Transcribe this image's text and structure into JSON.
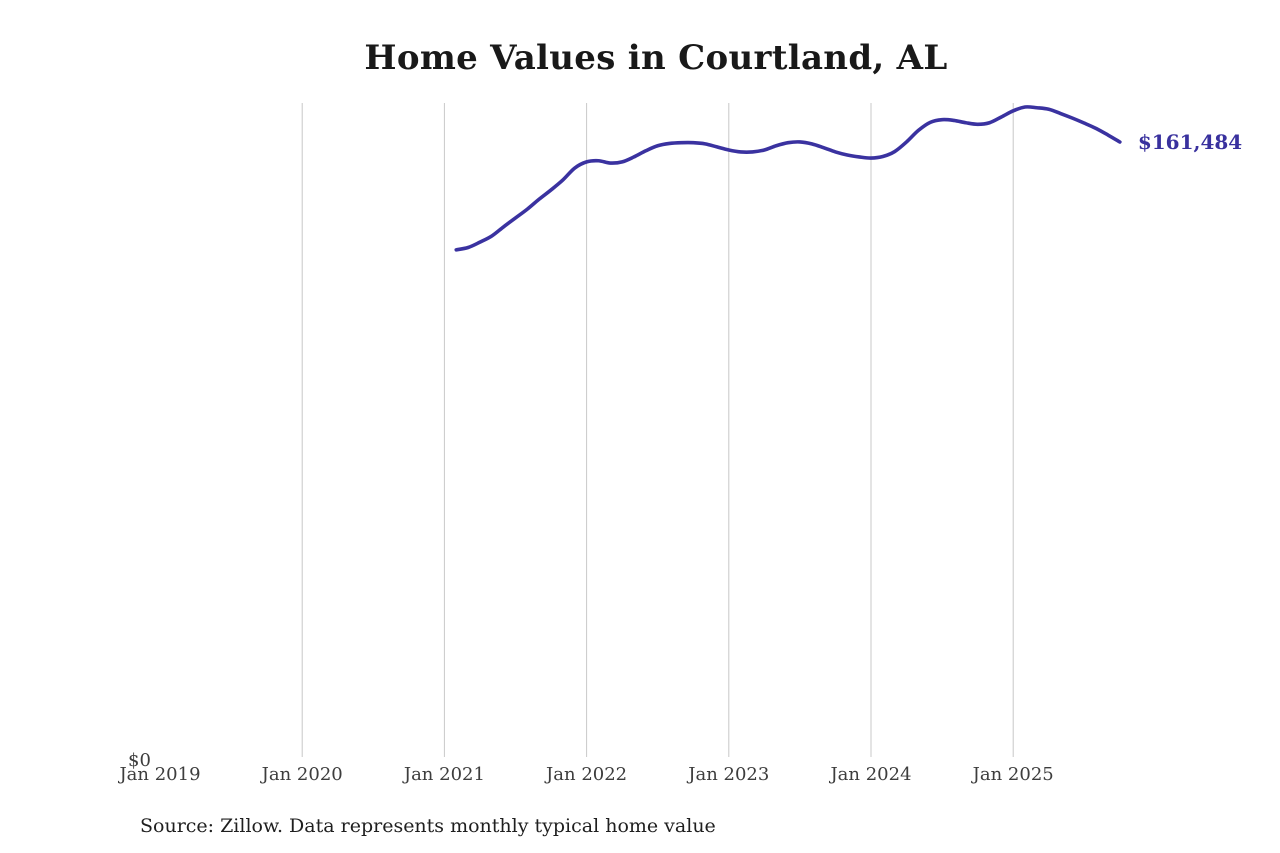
{
  "title": "Home Values in Courtland, AL",
  "y_axis_zero_label": "$0",
  "end_value_label": "$161,484",
  "source_note": "Source: Zillow. Data represents monthly typical home value",
  "colors": {
    "line": "#3a32a0",
    "end_label": "#39319e",
    "gridline": "#c8c8c8",
    "title_text": "#191919",
    "axis_text": "#3d3d3d"
  },
  "chart_data": {
    "type": "line",
    "title": "Home Values in Courtland, AL",
    "xlabel": "",
    "ylabel": "",
    "ylim": [
      0,
      185000
    ],
    "grid": "vertical gridlines at each January (Jan 2020 through Jan 2025), no gridline at Jan 2019",
    "legend": "none",
    "x_ticks": [
      "Jan 2019",
      "Jan 2020",
      "Jan 2021",
      "Jan 2022",
      "Jan 2023",
      "Jan 2024",
      "Jan 2025"
    ],
    "end_annotation": {
      "text": "$161,484",
      "x": "2025-10",
      "value": 161484
    },
    "series": [
      {
        "name": "Monthly typical home value",
        "color": "#3a32a0",
        "x": [
          "2021-02",
          "2021-03",
          "2021-04",
          "2021-05",
          "2021-06",
          "2021-07",
          "2021-08",
          "2021-09",
          "2021-10",
          "2021-11",
          "2021-12",
          "2022-01",
          "2022-02",
          "2022-03",
          "2022-04",
          "2022-05",
          "2022-06",
          "2022-07",
          "2022-08",
          "2022-09",
          "2022-10",
          "2022-11",
          "2022-12",
          "2023-01",
          "2023-02",
          "2023-03",
          "2023-04",
          "2023-05",
          "2023-06",
          "2023-07",
          "2023-08",
          "2023-09",
          "2023-10",
          "2023-11",
          "2023-12",
          "2024-01",
          "2024-02",
          "2024-03",
          "2024-04",
          "2024-05",
          "2024-06",
          "2024-07",
          "2024-08",
          "2024-09",
          "2024-10",
          "2024-11",
          "2024-12",
          "2025-01",
          "2025-02",
          "2025-03",
          "2025-04",
          "2025-05",
          "2025-06",
          "2025-07",
          "2025-08",
          "2025-09",
          "2025-10"
        ],
        "values": [
          133400,
          134000,
          135400,
          137000,
          139400,
          141700,
          144000,
          146600,
          149000,
          151600,
          154700,
          156300,
          156600,
          156000,
          156300,
          157600,
          159200,
          160500,
          161100,
          161300,
          161300,
          161000,
          160200,
          159400,
          158900,
          158900,
          159400,
          160500,
          161300,
          161500,
          161000,
          160000,
          158900,
          158100,
          157600,
          157300,
          157700,
          159000,
          161500,
          164500,
          166600,
          167300,
          167100,
          166500,
          166100,
          166500,
          168000,
          169600,
          170600,
          170400,
          170000,
          168900,
          167700,
          166400,
          165000,
          163300,
          161484
        ]
      }
    ]
  }
}
